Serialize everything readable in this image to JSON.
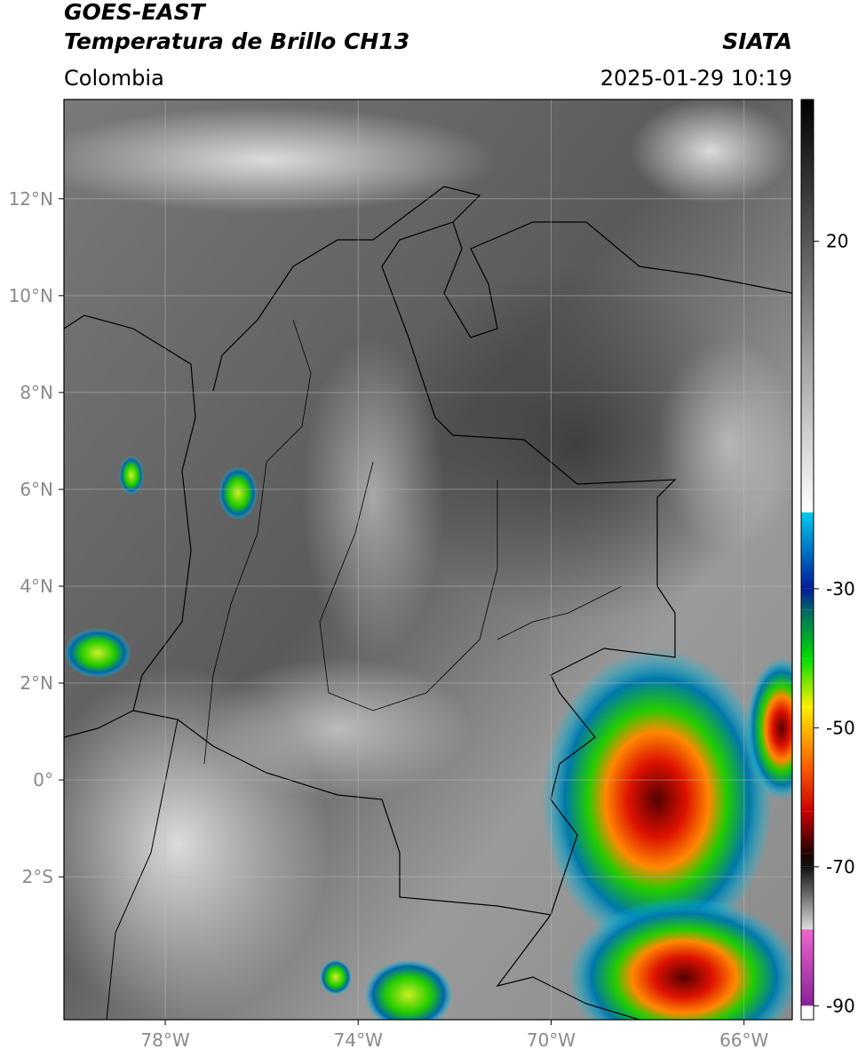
{
  "header": {
    "title": "GOES-EAST",
    "subtitle": "Temperatura de Brillo CH13",
    "source": "SIATA",
    "region": "Colombia",
    "datetime": "2025-01-29 10:19"
  },
  "map": {
    "xlim": [
      -80.1,
      -65
    ],
    "ylim": [
      -4.95,
      14.05
    ],
    "xticks": [
      {
        "value": -78,
        "label": "78°W"
      },
      {
        "value": -74,
        "label": "74°W"
      },
      {
        "value": -70,
        "label": "70°W"
      },
      {
        "value": -66,
        "label": "66°W"
      }
    ],
    "yticks": [
      {
        "value": 12,
        "label": "12°N"
      },
      {
        "value": 10,
        "label": "10°N"
      },
      {
        "value": 8,
        "label": "8°N"
      },
      {
        "value": 6,
        "label": "6°N"
      },
      {
        "value": 4,
        "label": "4°N"
      },
      {
        "value": 2,
        "label": "2°N"
      },
      {
        "value": 0,
        "label": "0°"
      },
      {
        "value": -2,
        "label": "2°S"
      }
    ],
    "grid": true
  },
  "colorbar": {
    "lim": [
      -92,
      40.4
    ],
    "ticks": [
      20,
      -30,
      -50,
      -70,
      -90
    ],
    "stops": [
      {
        "value": 40.4,
        "color": "#000000"
      },
      {
        "value": -19,
        "color": "#ffffff"
      },
      {
        "value": -19,
        "color": "#00ccee"
      },
      {
        "value": -30,
        "color": "#001a99"
      },
      {
        "value": -33,
        "color": "#006666"
      },
      {
        "value": -40,
        "color": "#00dd00"
      },
      {
        "value": -47,
        "color": "#ffee00"
      },
      {
        "value": -55,
        "color": "#ff6600"
      },
      {
        "value": -62,
        "color": "#cc0000"
      },
      {
        "value": -68,
        "color": "#220000"
      },
      {
        "value": -70,
        "color": "#111111"
      },
      {
        "value": -79,
        "color": "#dddddd"
      },
      {
        "value": -79,
        "color": "#ee66cc"
      },
      {
        "value": -90,
        "color": "#882299"
      },
      {
        "value": -90,
        "color": "#ffffff"
      },
      {
        "value": -92,
        "color": "#ffffff"
      }
    ]
  }
}
